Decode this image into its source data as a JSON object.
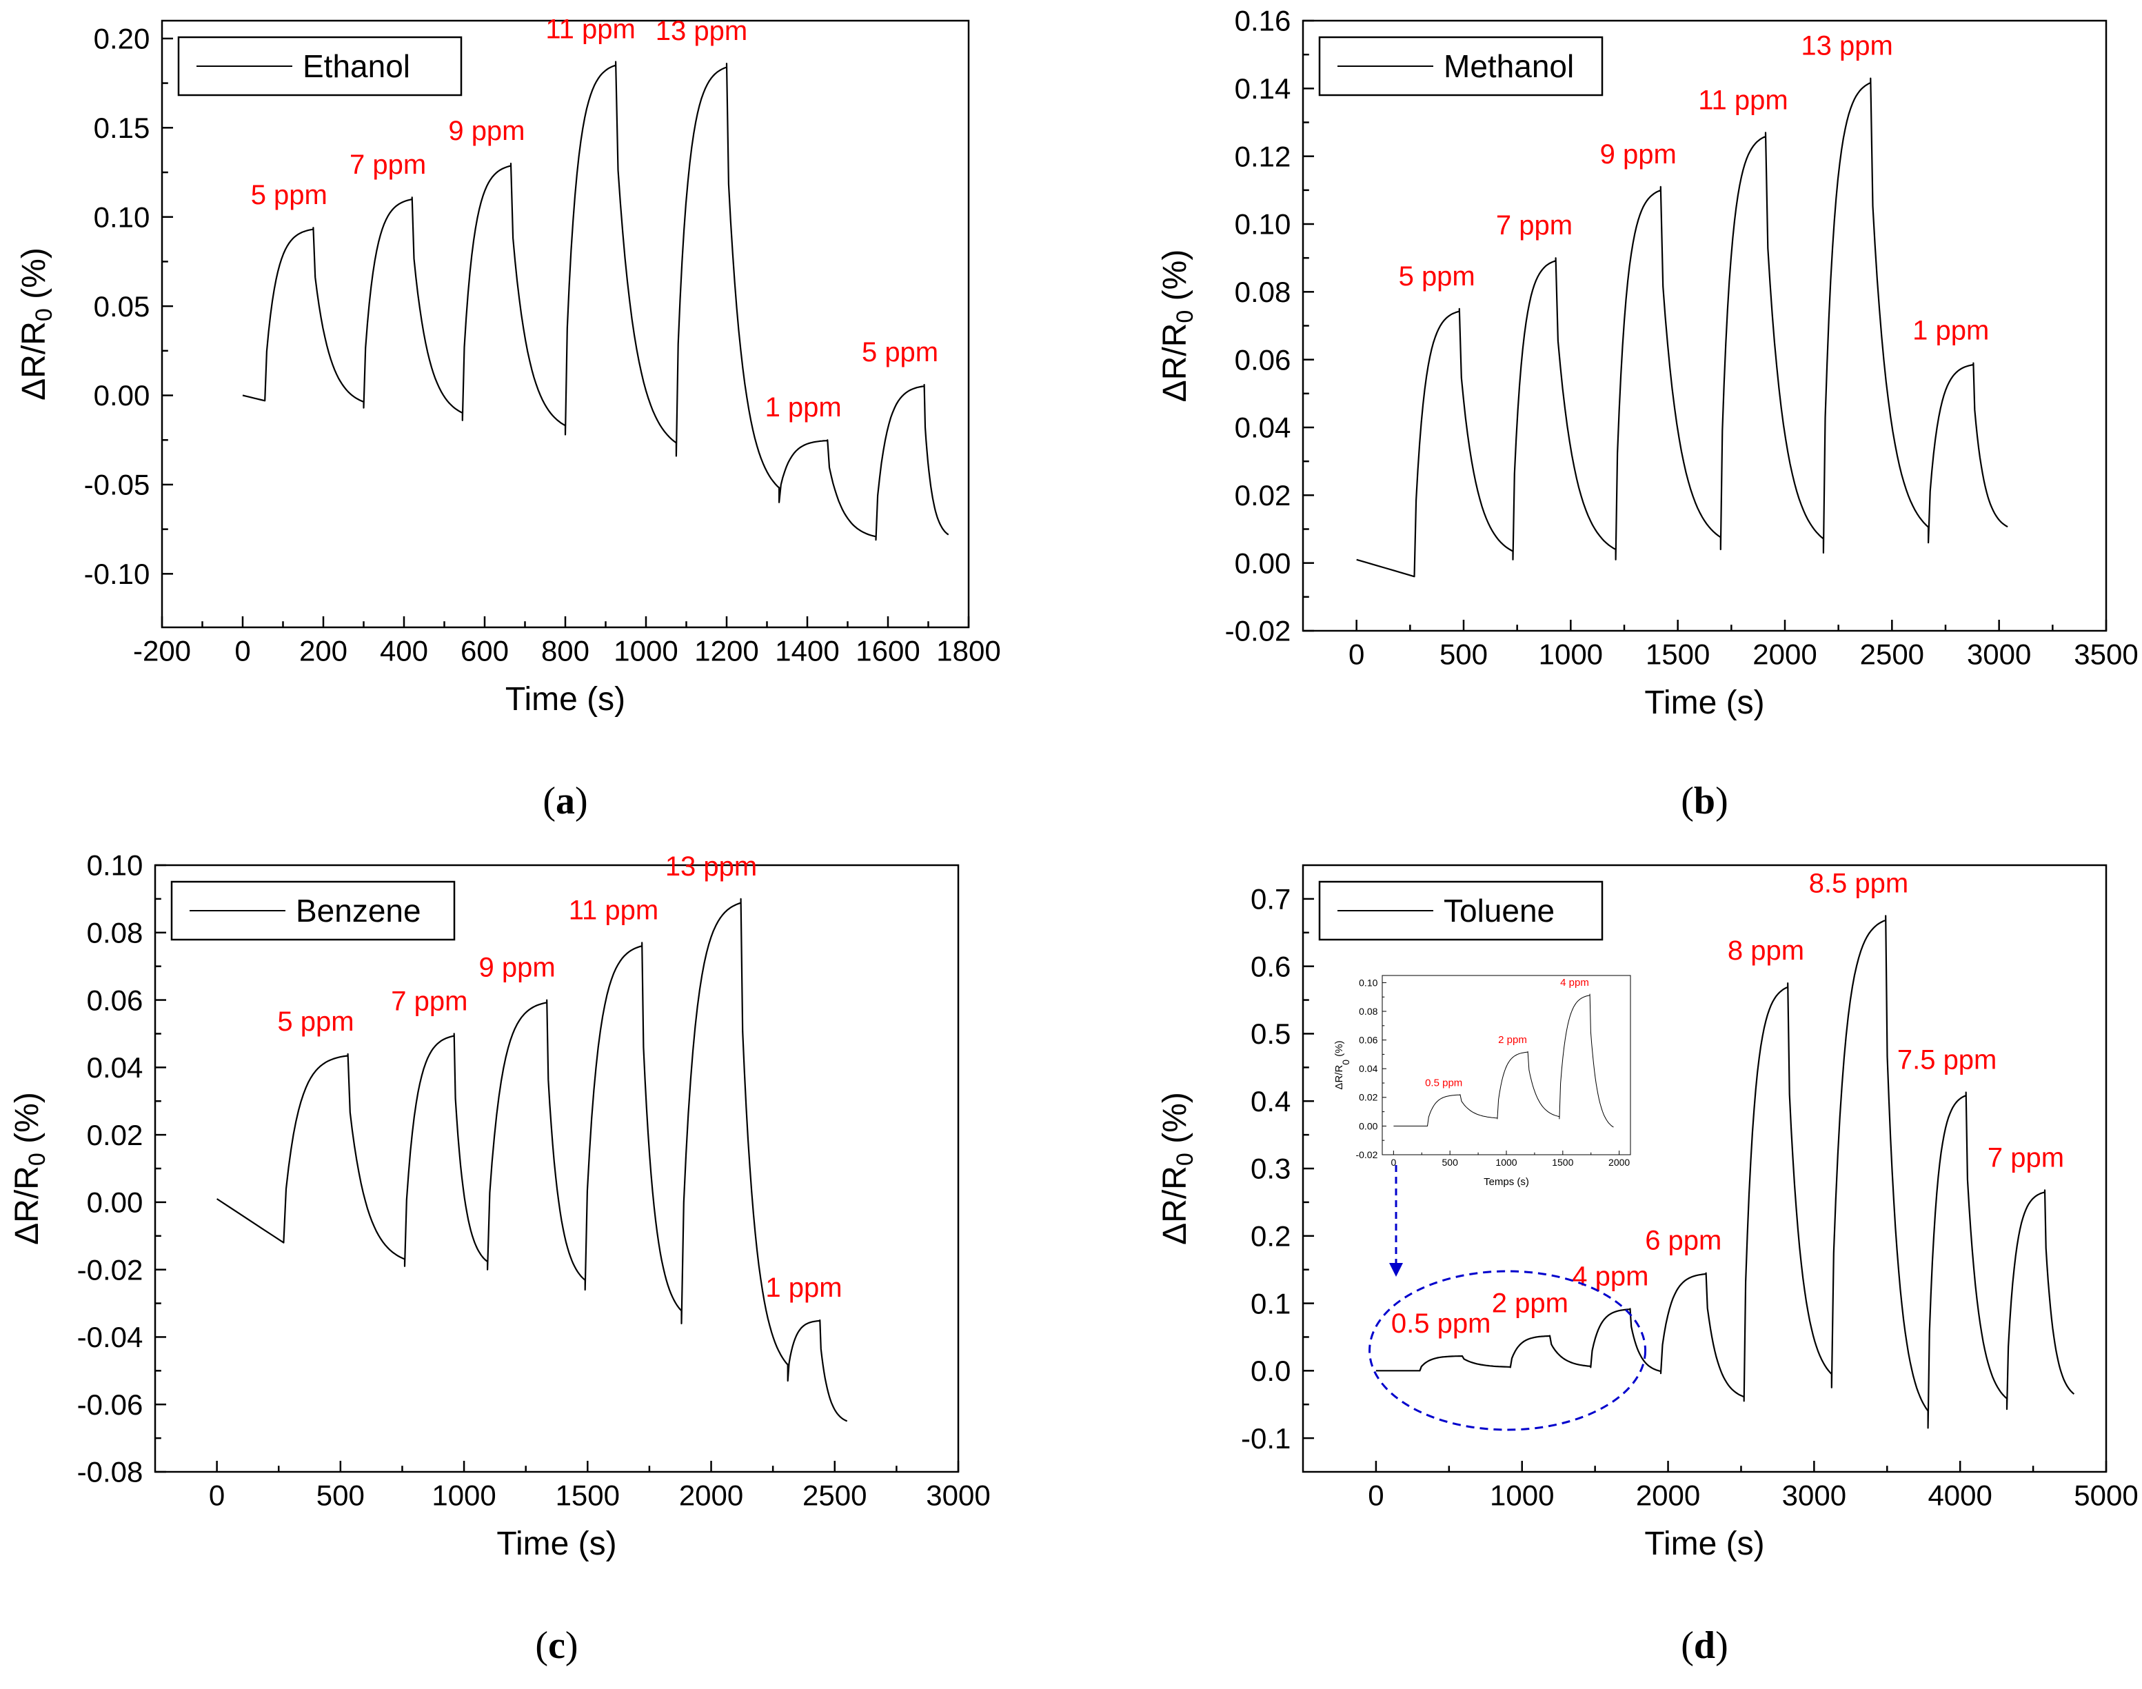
{
  "colors": {
    "trace": "#000000",
    "annotation": "#ff0000",
    "highlight": "#0000cc"
  },
  "chart_data": [
    {
      "type": "line",
      "panel_label": "a",
      "legend": "Ethanol",
      "xlabel": "Time (s)",
      "ylabel": {
        "prefix": "ΔR/R",
        "subscript": "0",
        "suffix": " (%)"
      },
      "xlim": [
        -200,
        1800
      ],
      "ylim": [
        -0.13,
        0.21
      ],
      "xticks": [
        -200,
        0,
        200,
        400,
        600,
        800,
        1000,
        1200,
        1400,
        1600,
        1800
      ],
      "yticks": [
        -0.1,
        -0.05,
        0.0,
        0.05,
        0.1,
        0.15,
        0.2
      ],
      "ytick_decimals": 2,
      "start": [
        0,
        0.0
      ],
      "pulses": [
        {
          "on": 55,
          "off": 175,
          "baseline": -0.003,
          "plateau": 0.094,
          "end": -0.007,
          "label": "5 ppm"
        },
        {
          "on": 300,
          "off": 420,
          "baseline": -0.007,
          "plateau": 0.111,
          "end": -0.014,
          "label": "7 ppm"
        },
        {
          "on": 545,
          "off": 665,
          "baseline": -0.014,
          "plateau": 0.13,
          "end": -0.022,
          "label": "9 ppm"
        },
        {
          "on": 800,
          "off": 925,
          "baseline": -0.022,
          "plateau": 0.187,
          "end": -0.034,
          "label": "11 ppm"
        },
        {
          "on": 1075,
          "off": 1200,
          "baseline": -0.034,
          "plateau": 0.186,
          "end": -0.06,
          "label": "13 ppm"
        },
        {
          "on": 1330,
          "off": 1450,
          "baseline": -0.06,
          "plateau": -0.025,
          "end": -0.081,
          "label": "1 ppm"
        },
        {
          "on": 1570,
          "off": 1690,
          "baseline": -0.081,
          "plateau": 0.006,
          "end": -0.081,
          "label": "5 ppm"
        }
      ],
      "end_time": 1750
    },
    {
      "type": "line",
      "panel_label": "b",
      "legend": "Methanol",
      "xlabel": "Time (s)",
      "ylabel": {
        "prefix": "ΔR/R",
        "subscript": "0",
        "suffix": " (%)"
      },
      "xlim": [
        -250,
        3500
      ],
      "ylim": [
        -0.02,
        0.16
      ],
      "xticks": [
        0,
        500,
        1000,
        1500,
        2000,
        2500,
        3000,
        3500
      ],
      "yticks": [
        -0.02,
        0.0,
        0.02,
        0.04,
        0.06,
        0.08,
        0.1,
        0.12,
        0.14,
        0.16
      ],
      "ytick_decimals": 2,
      "start": [
        0,
        0.001
      ],
      "pulses": [
        {
          "on": 270,
          "off": 480,
          "baseline": -0.004,
          "plateau": 0.075,
          "end": 0.001,
          "label": "5 ppm"
        },
        {
          "on": 730,
          "off": 930,
          "baseline": 0.001,
          "plateau": 0.09,
          "end": 0.001,
          "label": "7 ppm"
        },
        {
          "on": 1210,
          "off": 1420,
          "baseline": 0.001,
          "plateau": 0.111,
          "end": 0.004,
          "label": "9 ppm"
        },
        {
          "on": 1700,
          "off": 1910,
          "baseline": 0.004,
          "plateau": 0.127,
          "end": 0.003,
          "label": "11 ppm"
        },
        {
          "on": 2180,
          "off": 2400,
          "baseline": 0.003,
          "plateau": 0.143,
          "end": 0.006,
          "label": "13 ppm"
        },
        {
          "on": 2670,
          "off": 2880,
          "baseline": 0.006,
          "plateau": 0.059,
          "end": 0.009,
          "label": "1 ppm"
        }
      ],
      "end_time": 3040
    },
    {
      "type": "line",
      "panel_label": "c",
      "legend": "Benzene",
      "xlabel": "Time (s)",
      "ylabel": {
        "prefix": "ΔR/R",
        "subscript": "0",
        "suffix": " (%)"
      },
      "xlim": [
        -250,
        3000
      ],
      "ylim": [
        -0.08,
        0.1
      ],
      "xticks": [
        0,
        500,
        1000,
        1500,
        2000,
        2500,
        3000
      ],
      "yticks": [
        -0.08,
        -0.06,
        -0.04,
        -0.02,
        0.0,
        0.02,
        0.04,
        0.06,
        0.08,
        0.1
      ],
      "ytick_decimals": 2,
      "start": [
        0,
        0.001
      ],
      "pulses": [
        {
          "on": 270,
          "off": 530,
          "baseline": -0.012,
          "plateau": 0.044,
          "end": -0.019,
          "label": "5 ppm"
        },
        {
          "on": 760,
          "off": 960,
          "baseline": -0.019,
          "plateau": 0.05,
          "end": -0.02,
          "label": "7 ppm"
        },
        {
          "on": 1095,
          "off": 1335,
          "baseline": -0.02,
          "plateau": 0.06,
          "end": -0.026,
          "label": "9 ppm"
        },
        {
          "on": 1490,
          "off": 1720,
          "baseline": -0.026,
          "plateau": 0.077,
          "end": -0.036,
          "label": "11 ppm"
        },
        {
          "on": 1880,
          "off": 2120,
          "baseline": -0.036,
          "plateau": 0.09,
          "end": -0.053,
          "label": "13 ppm"
        },
        {
          "on": 2310,
          "off": 2440,
          "baseline": -0.053,
          "plateau": -0.035,
          "end": -0.066,
          "label": "1 ppm"
        }
      ],
      "end_time": 2550
    },
    {
      "type": "line",
      "panel_label": "d",
      "legend": "Toluene",
      "xlabel": "Time (s)",
      "ylabel": {
        "prefix": "ΔR/R",
        "subscript": "0",
        "suffix": " (%)"
      },
      "xlim": [
        -500,
        5000
      ],
      "ylim": [
        -0.15,
        0.75
      ],
      "xticks": [
        0,
        1000,
        2000,
        3000,
        4000,
        5000
      ],
      "yticks": [
        -0.1,
        0.0,
        0.1,
        0.2,
        0.3,
        0.4,
        0.5,
        0.6,
        0.7
      ],
      "ytick_decimals": 1,
      "start": [
        0,
        0.0
      ],
      "pulses": [
        {
          "on": 300,
          "off": 590,
          "baseline": 0.0,
          "plateau": 0.022,
          "end": 0.005,
          "label": "0.5 ppm"
        },
        {
          "on": 920,
          "off": 1190,
          "baseline": 0.005,
          "plateau": 0.052,
          "end": 0.005,
          "label": "2 ppm"
        },
        {
          "on": 1470,
          "off": 1740,
          "baseline": 0.005,
          "plateau": 0.092,
          "end": -0.004,
          "label": "4 ppm"
        },
        {
          "on": 1950,
          "off": 2260,
          "baseline": -0.004,
          "plateau": 0.145,
          "end": -0.045,
          "label": "6 ppm"
        },
        {
          "on": 2520,
          "off": 2820,
          "baseline": -0.045,
          "plateau": 0.575,
          "end": -0.025,
          "label": "8 ppm"
        },
        {
          "on": 3120,
          "off": 3490,
          "baseline": -0.025,
          "plateau": 0.675,
          "end": -0.085,
          "label": "8.5 ppm"
        },
        {
          "on": 3780,
          "off": 4040,
          "baseline": -0.085,
          "plateau": 0.413,
          "end": -0.057,
          "label": "7.5 ppm"
        },
        {
          "on": 4320,
          "off": 4580,
          "baseline": -0.057,
          "plateau": 0.268,
          "end": -0.045,
          "label": "7 ppm"
        }
      ],
      "end_time": 4780,
      "inset": {
        "xlabel": "Temps (s)",
        "ylabel": {
          "prefix": "ΔR/R",
          "subscript": "0",
          "suffix": " (%)"
        },
        "xlim": [
          -100,
          2100
        ],
        "ylim": [
          -0.02,
          0.105
        ],
        "xticks": [
          0,
          500,
          1000,
          1500,
          2000
        ],
        "yticks": [
          -0.02,
          0.0,
          0.02,
          0.04,
          0.06,
          0.08,
          0.1
        ],
        "ytick_decimals": 2,
        "start": [
          0,
          0.0
        ],
        "pulses": [
          {
            "on": 300,
            "off": 590,
            "baseline": 0.0,
            "plateau": 0.022,
            "end": 0.005,
            "label": "0.5 ppm"
          },
          {
            "on": 920,
            "off": 1190,
            "baseline": 0.005,
            "plateau": 0.052,
            "end": 0.005,
            "label": "2 ppm"
          },
          {
            "on": 1470,
            "off": 1740,
            "baseline": 0.005,
            "plateau": 0.092,
            "end": -0.004,
            "label": "4 ppm"
          }
        ],
        "end_time": 1950
      }
    }
  ]
}
